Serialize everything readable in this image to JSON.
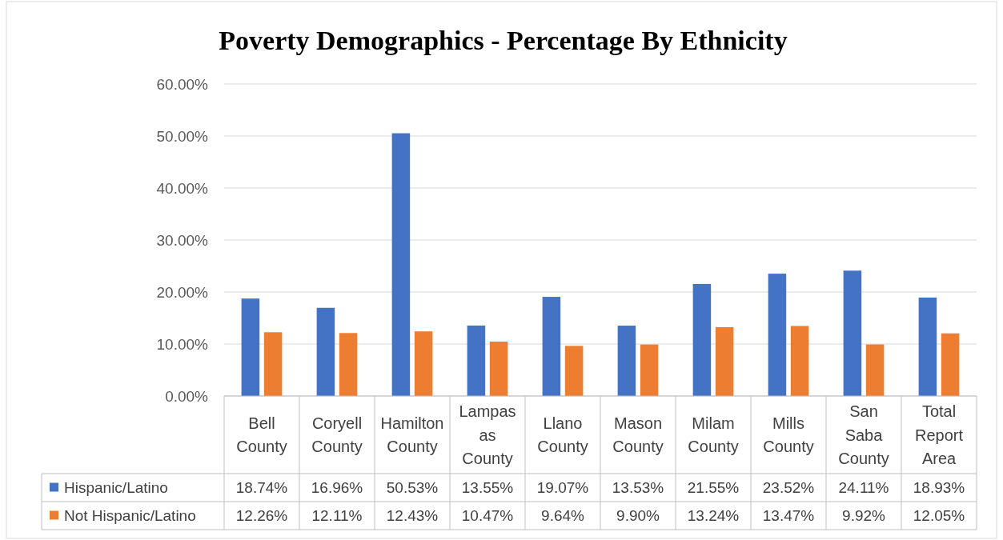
{
  "chart_data": {
    "type": "bar",
    "title": "Poverty Demographics - Percentage By Ethnicity",
    "categories": [
      "Bell County",
      "Coryell County",
      "Hamilton County",
      "Lampasas County",
      "Llano County",
      "Mason County",
      "Milam County",
      "Mills County",
      "San Saba County",
      "Total Report Area"
    ],
    "series": [
      {
        "name": "Hispanic/Latino",
        "color": "#4472c4",
        "values": [
          18.74,
          16.96,
          50.53,
          13.55,
          19.07,
          13.53,
          21.55,
          23.52,
          24.11,
          18.93
        ],
        "value_labels": [
          "18.74%",
          "16.96%",
          "50.53%",
          "13.55%",
          "19.07%",
          "13.53%",
          "21.55%",
          "23.52%",
          "24.11%",
          "18.93%"
        ]
      },
      {
        "name": "Not Hispanic/Latino",
        "color": "#ed7d31",
        "values": [
          12.26,
          12.11,
          12.43,
          10.47,
          9.64,
          9.9,
          13.24,
          13.47,
          9.92,
          12.05
        ],
        "value_labels": [
          "12.26%",
          "12.11%",
          "12.43%",
          "10.47%",
          "9.64%",
          "9.90%",
          "13.24%",
          "13.47%",
          "9.92%",
          "12.05%"
        ]
      }
    ],
    "ylim": [
      0,
      60
    ],
    "yticks": [
      {
        "value": 0,
        "label": "0.00%"
      },
      {
        "value": 10,
        "label": "10.00%"
      },
      {
        "value": 20,
        "label": "20.00%"
      },
      {
        "value": 30,
        "label": "30.00%"
      },
      {
        "value": 40,
        "label": "40.00%"
      },
      {
        "value": 50,
        "label": "50.00%"
      },
      {
        "value": 60,
        "label": "60.00%"
      }
    ],
    "grid": "y",
    "legend": "bottom"
  }
}
